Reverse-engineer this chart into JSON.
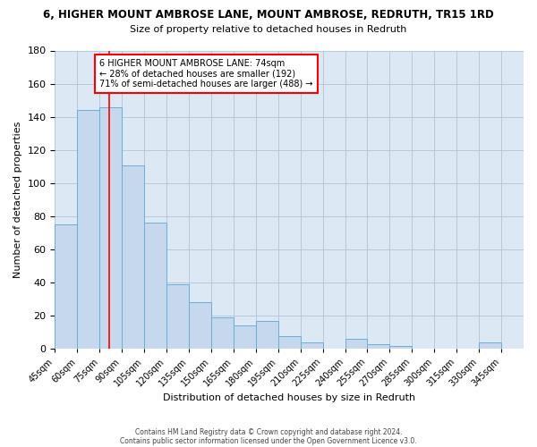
{
  "title": "6, HIGHER MOUNT AMBROSE LANE, MOUNT AMBROSE, REDRUTH, TR15 1RD",
  "subtitle": "Size of property relative to detached houses in Redruth",
  "xlabel": "Distribution of detached houses by size in Redruth",
  "ylabel": "Number of detached properties",
  "bar_labels": [
    "45sqm",
    "60sqm",
    "75sqm",
    "90sqm",
    "105sqm",
    "120sqm",
    "135sqm",
    "150sqm",
    "165sqm",
    "180sqm",
    "195sqm",
    "210sqm",
    "225sqm",
    "240sqm",
    "255sqm",
    "270sqm",
    "285sqm",
    "300sqm",
    "315sqm",
    "330sqm",
    "345sqm"
  ],
  "bar_values": [
    75,
    144,
    146,
    111,
    76,
    39,
    28,
    19,
    14,
    17,
    8,
    4,
    0,
    6,
    3,
    2,
    0,
    0,
    0,
    4,
    0
  ],
  "bar_color": "#c5d8ed",
  "bar_edge_color": "#6aaed6",
  "red_line_x": 74,
  "ylim": [
    0,
    180
  ],
  "yticks": [
    0,
    20,
    40,
    60,
    80,
    100,
    120,
    140,
    160,
    180
  ],
  "annotation_title": "6 HIGHER MOUNT AMBROSE LANE: 74sqm",
  "annotation_line1": "← 28% of detached houses are smaller (192)",
  "annotation_line2": "71% of semi-detached houses are larger (488) →",
  "footer_line1": "Contains HM Land Registry data © Crown copyright and database right 2024.",
  "footer_line2": "Contains public sector information licensed under the Open Government Licence v3.0.",
  "background_color": "#ffffff",
  "plot_bg_color": "#dce9f5",
  "grid_color": "#b0c4d8"
}
